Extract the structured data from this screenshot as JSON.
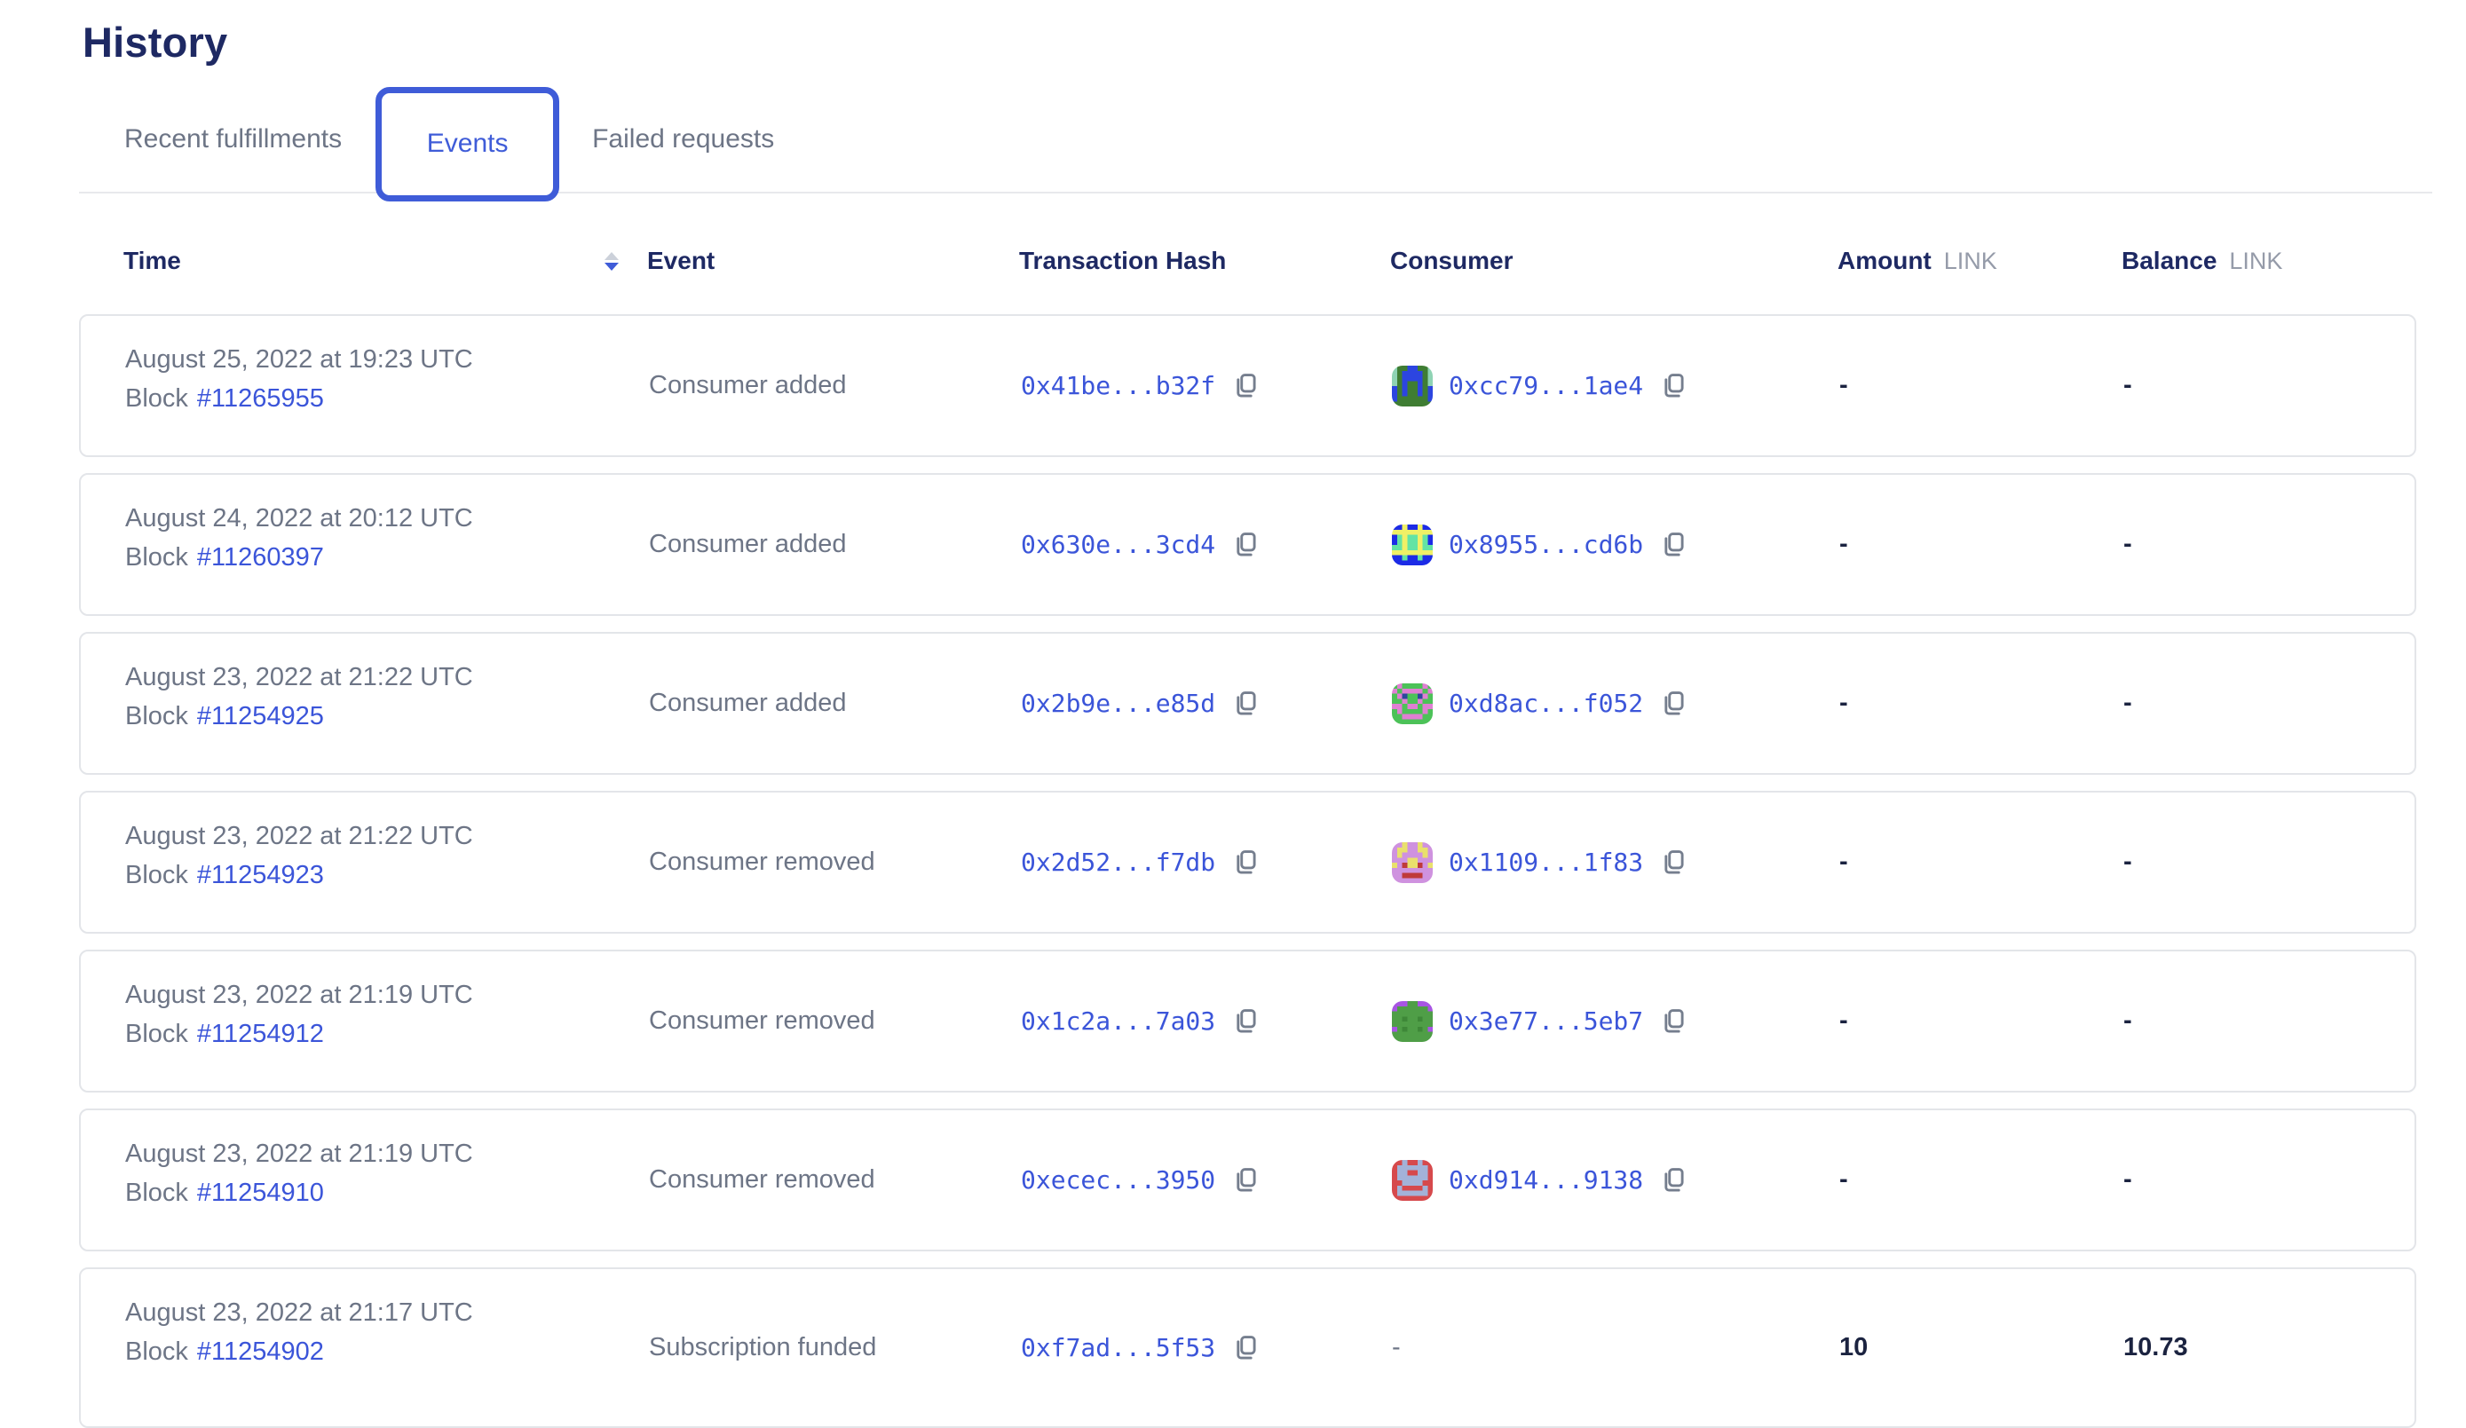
{
  "page": {
    "title": "History"
  },
  "tabs": {
    "recent": "Recent fulfillments",
    "events": "Events",
    "failed": "Failed requests"
  },
  "table": {
    "headers": {
      "time": "Time",
      "event": "Event",
      "tx": "Transaction Hash",
      "consumer": "Consumer",
      "amount": "Amount",
      "balance": "Balance",
      "unit": "LINK"
    }
  },
  "colors": {
    "accent_blue": "#3f5cd8",
    "link_blue": "#3b55d9",
    "heading_navy": "#1e2963",
    "body_gray": "#6d7586",
    "value_navy": "#1b2340",
    "card_border": "#e3e5e9"
  },
  "icons": {
    "sort": "sort-descending-icon",
    "copy": "copy-icon"
  },
  "rows": [
    {
      "date": "August 25, 2022 at 19:23 UTC",
      "block_label": "Block",
      "block": "#11265955",
      "event": "Consumer added",
      "tx": "0x41be...b32f",
      "consumer": {
        "hash": "0xcc79...1ae4",
        "avatar": {
          "palette": {
            "g": "#3f7d33",
            "b": "#2c45e0",
            "t": "#8fd3b4"
          },
          "grid": [
            "tggbbggt",
            "tgbbbbgt",
            "tgbbbbgt",
            "tgbggbgt",
            "bgbggbgb",
            "bgbggbgb",
            "bggggggb",
            "gggggggg"
          ]
        }
      },
      "amount": "-",
      "balance": "-"
    },
    {
      "date": "August 24, 2022 at 20:12 UTC",
      "block_label": "Block",
      "block": "#11260397",
      "event": "Consumer added",
      "tx": "0x630e...3cd4",
      "consumer": {
        "hash": "0x8955...cd6b",
        "avatar": {
          "palette": {
            "B": "#1c2be6",
            "y": "#eff066",
            "a": "#63e3a4"
          },
          "grid": [
            "BByBByBB",
            "yyyyyyyy",
            "BayaayaB",
            "BayaayaB",
            "aayaayaa",
            "yyyyyyyy",
            "BBaBBaBB",
            "BBBBBBBB"
          ]
        }
      },
      "amount": "-",
      "balance": "-"
    },
    {
      "date": "August 23, 2022 at 21:22 UTC",
      "block_label": "Block",
      "block": "#11254925",
      "event": "Consumer added",
      "tx": "0x2b9e...e85d",
      "consumer": {
        "hash": "0xd8ac...f052",
        "avatar": {
          "palette": {
            "G": "#4cc258",
            "P": "#e07fd3",
            "N": "#2b4a9b"
          },
          "grid": [
            "GPGGGGPG",
            "PGPPPPGP",
            "GPNGGNPG",
            "GGPGGPGG",
            "PPGPPGPP",
            "GPGGGGPG",
            "GGPPPPGG",
            "GGGGGGGG"
          ]
        }
      },
      "amount": "-",
      "balance": "-"
    },
    {
      "date": "August 23, 2022 at 21:22 UTC",
      "block_label": "Block",
      "block": "#11254923",
      "event": "Consumer removed",
      "tx": "0x2d52...f7db",
      "consumer": {
        "hash": "0x1109...1f83",
        "avatar": {
          "palette": {
            "V": "#cf92df",
            "Y": "#e9e06c",
            "R": "#bf3a3a"
          },
          "grid": [
            "VVYVVYVV",
            "VYYVVYYV",
            "VYVVVVYV",
            "VVVYYVVV",
            "YVRYYRVY",
            "VVVVVVVV",
            "VVRRRRVV",
            "VVVVVVVV"
          ]
        }
      },
      "amount": "-",
      "balance": "-"
    },
    {
      "date": "August 23, 2022 at 21:19 UTC",
      "block_label": "Block",
      "block": "#11254912",
      "event": "Consumer removed",
      "tx": "0x1c2a...7a03",
      "consumer": {
        "hash": "0x3e77...5eb7",
        "avatar": {
          "palette": {
            "U": "#a855e3",
            "G": "#4f9e47",
            "D": "#3e8838"
          },
          "grid": [
            "UUUGGUUU",
            "UGGGGGGU",
            "GGGGGGGG",
            "GGDGGDGG",
            "GGGGGGGG",
            "UGDGGDGU",
            "GGGGGGGG",
            "GGGGGGGG"
          ]
        }
      },
      "amount": "-",
      "balance": "-"
    },
    {
      "date": "August 23, 2022 at 21:19 UTC",
      "block_label": "Block",
      "block": "#11254910",
      "event": "Consumer removed",
      "tx": "0xecec...3950",
      "consumer": {
        "hash": "0xd914...9138",
        "avatar": {
          "palette": {
            "R": "#d6494c",
            "S": "#a3b2d8"
          },
          "grid": [
            "RRSRRSRR",
            "RSSSSSSR",
            "RSSRRSSR",
            "RSSSSSSR",
            "RRSSSSRR",
            "RSRRRRSR",
            "RSSSSSSR",
            "RRRRRRRR"
          ]
        }
      },
      "amount": "-",
      "balance": "-"
    },
    {
      "date": "August 23, 2022 at 21:17 UTC",
      "block_label": "Block",
      "block": "#11254902",
      "event": "Subscription funded",
      "tx": "0xf7ad...5f53",
      "consumer": {
        "hash": null,
        "dash": "-"
      },
      "amount": "10",
      "balance": "10.73"
    }
  ]
}
